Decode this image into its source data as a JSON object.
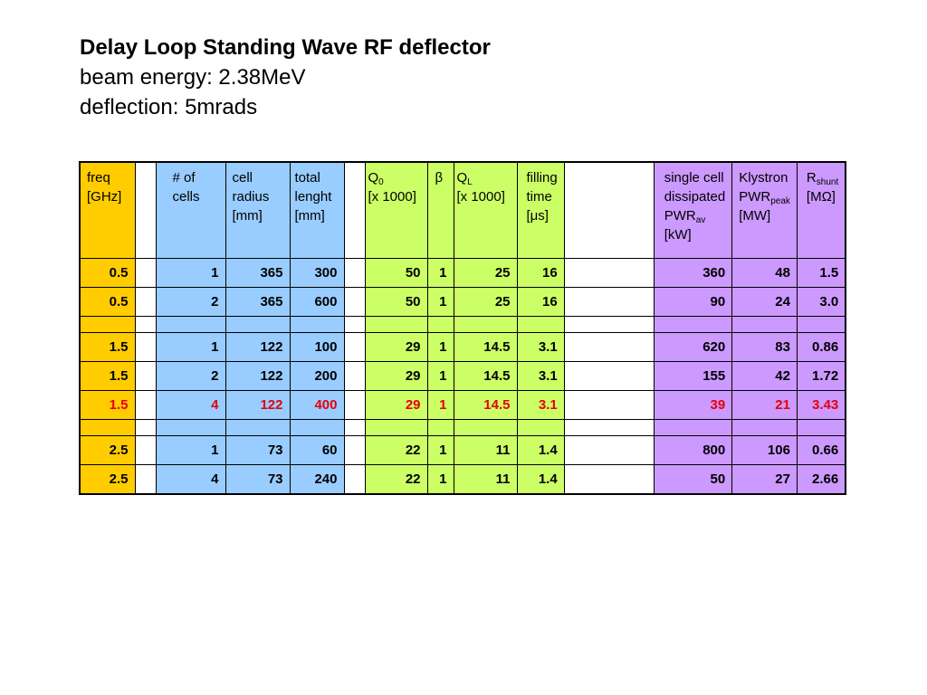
{
  "title": {
    "line1": "Delay Loop Standing Wave RF deflector",
    "line2": "beam energy: 2.38MeV",
    "line3": "deflection: 5mrads"
  },
  "table": {
    "headers": {
      "freq": {
        "l1": "freq",
        "l2": "[GHz]"
      },
      "cells": {
        "l1": "# of",
        "l2": "cells"
      },
      "radius": {
        "l1": "cell",
        "l2": "radius",
        "l3": "[mm]"
      },
      "length": {
        "l1": "total",
        "l2": "lenght",
        "l3": "[mm]"
      },
      "q0": {
        "main": "Q",
        "sub": "0",
        "l2": "[x 1000]"
      },
      "beta": {
        "l1": "β"
      },
      "ql": {
        "main": "Q",
        "sub": "L",
        "l2": "[x 1000]"
      },
      "fill": {
        "l1": "filling",
        "l2": "time",
        "l3": "[μs]"
      },
      "pwr": {
        "l1": "single cell",
        "l2": "dissipated",
        "main": "PWR",
        "sub": "av",
        "l4": "[kW]"
      },
      "kly": {
        "l1": "Klystron",
        "main": "PWR",
        "sub": "peak",
        "l3": "[MW]"
      },
      "rsh": {
        "main": "R",
        "sub": "shunt",
        "l2": "[MΩ]"
      }
    },
    "rows": [
      {
        "freq": "0.5",
        "cells": "1",
        "radius": "365",
        "length": "300",
        "q0": "50",
        "beta": "1",
        "ql": "25",
        "fill": "16",
        "pwr": "360",
        "kly": "48",
        "rsh": "1.5"
      },
      {
        "freq": "0.5",
        "cells": "2",
        "radius": "365",
        "length": "600",
        "q0": "50",
        "beta": "1",
        "ql": "25",
        "fill": "16",
        "pwr": "90",
        "kly": "24",
        "rsh": "3.0"
      },
      {
        "freq": "1.5",
        "cells": "1",
        "radius": "122",
        "length": "100",
        "q0": "29",
        "beta": "1",
        "ql": "14.5",
        "fill": "3.1",
        "pwr": "620",
        "kly": "83",
        "rsh": "0.86"
      },
      {
        "freq": "1.5",
        "cells": "2",
        "radius": "122",
        "length": "200",
        "q0": "29",
        "beta": "1",
        "ql": "14.5",
        "fill": "3.1",
        "pwr": "155",
        "kly": "42",
        "rsh": "1.72"
      },
      {
        "freq": "1.5",
        "cells": "4",
        "radius": "122",
        "length": "400",
        "q0": "29",
        "beta": "1",
        "ql": "14.5",
        "fill": "3.1",
        "pwr": "39",
        "kly": "21",
        "rsh": "3.43"
      },
      {
        "freq": "2.5",
        "cells": "1",
        "radius": "73",
        "length": "60",
        "q0": "22",
        "beta": "1",
        "ql": "11",
        "fill": "1.4",
        "pwr": "800",
        "kly": "106",
        "rsh": "0.66"
      },
      {
        "freq": "2.5",
        "cells": "4",
        "radius": "73",
        "length": "240",
        "q0": "22",
        "beta": "1",
        "ql": "11",
        "fill": "1.4",
        "pwr": "50",
        "kly": "27",
        "rsh": "2.66"
      }
    ],
    "highlight_color": "#e6000a",
    "group_colors": {
      "freq": "#ffcc00",
      "geometry": "#99ccff",
      "rf": "#ccff66",
      "power": "#cc99ff"
    }
  }
}
